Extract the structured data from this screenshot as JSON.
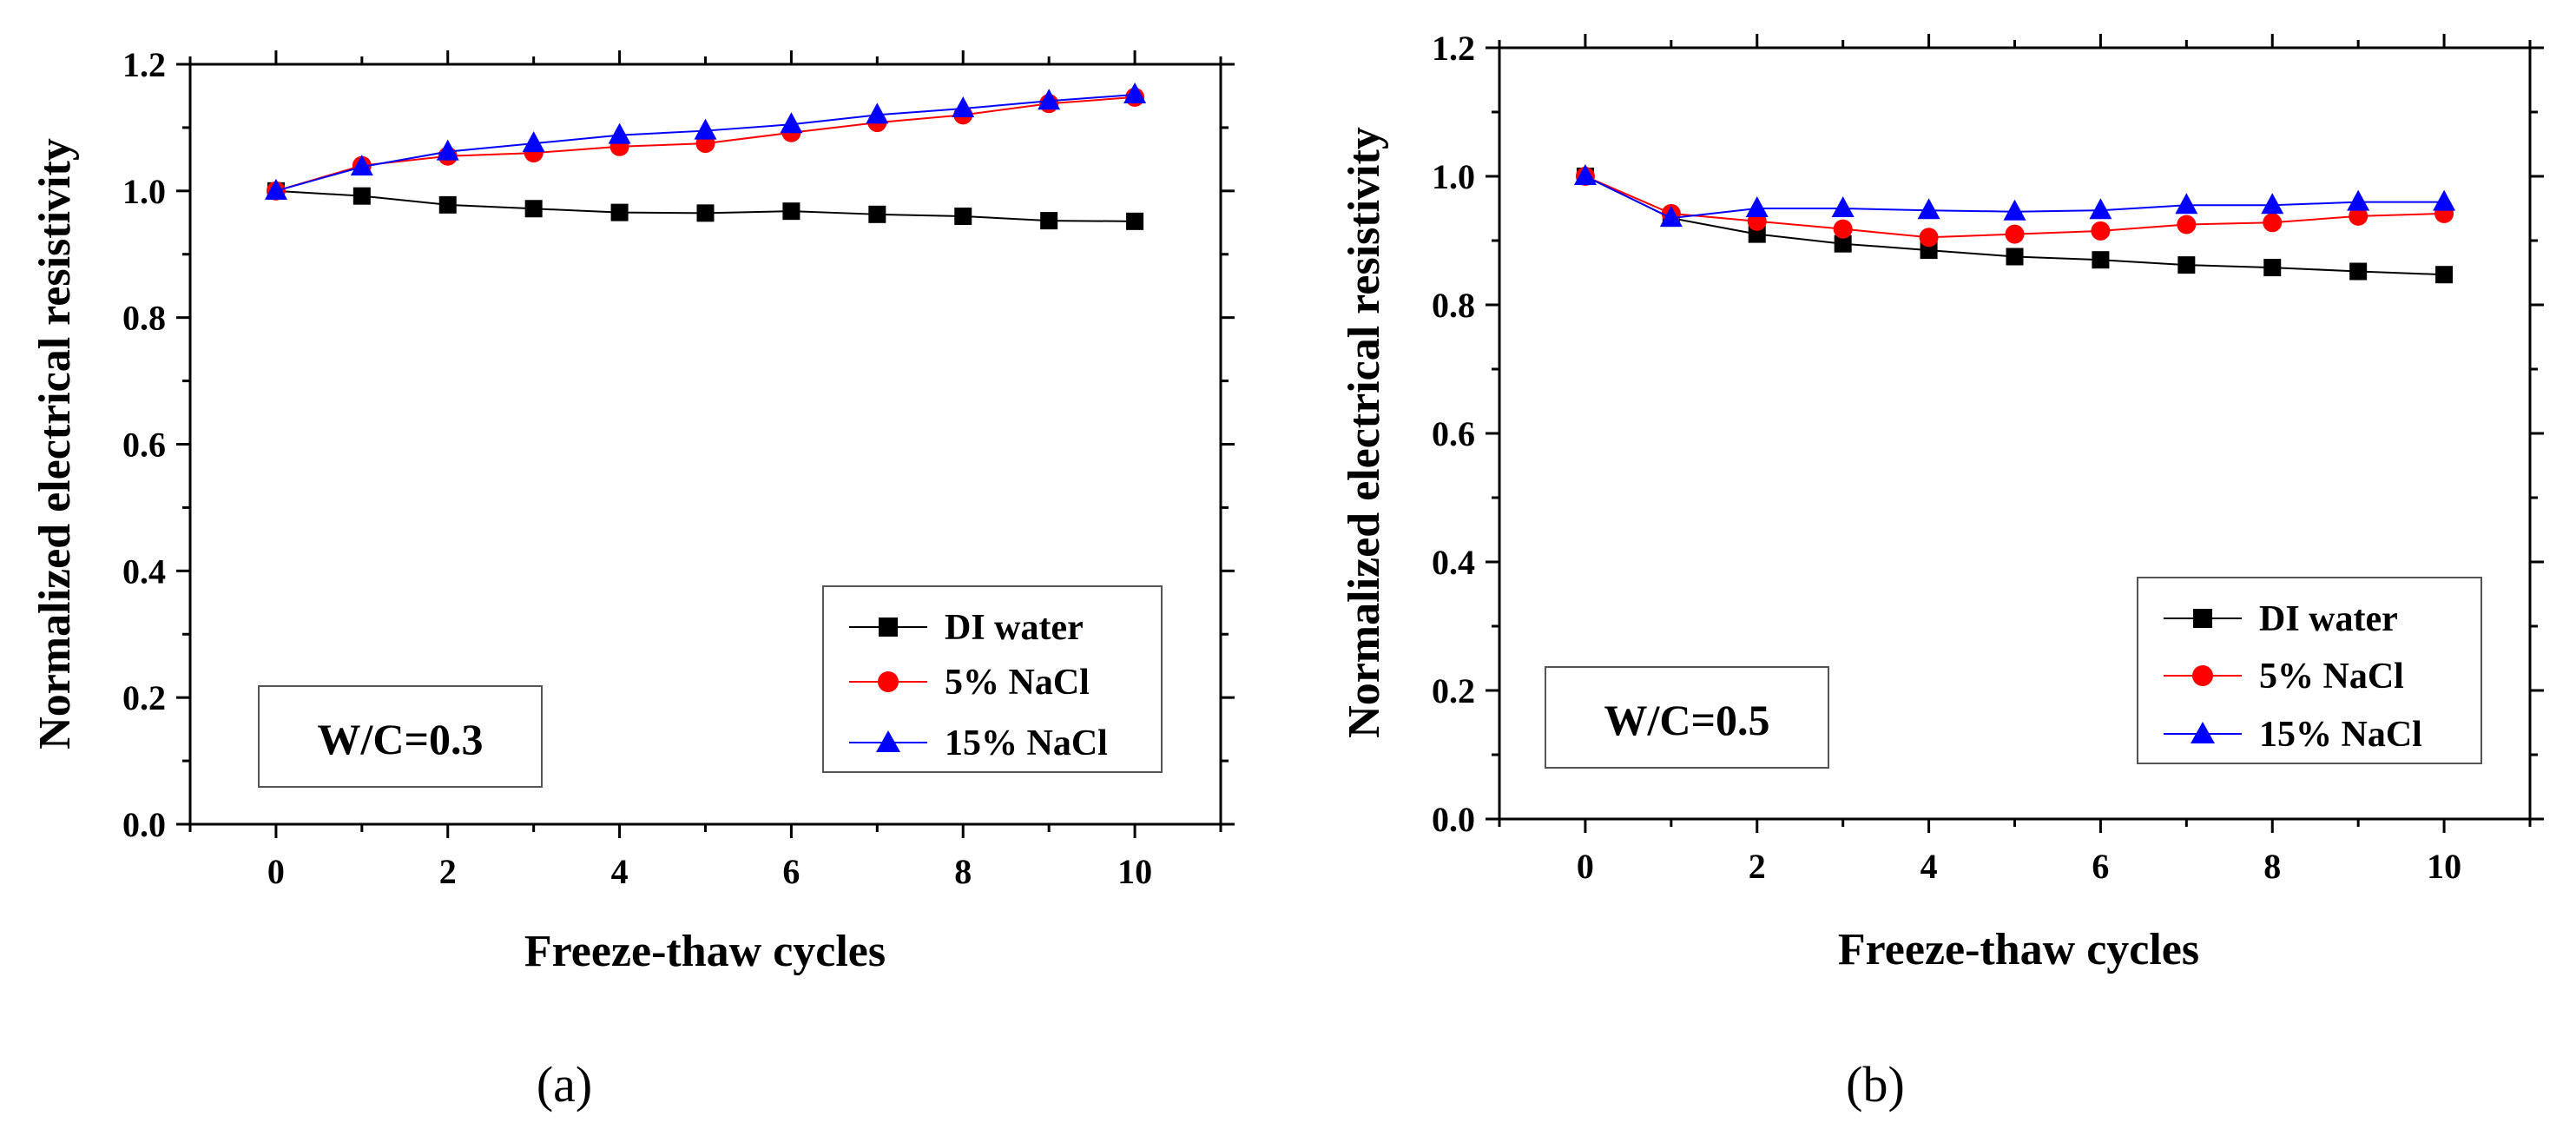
{
  "chart_data": [
    {
      "type": "line",
      "panel_label": "(a)",
      "xlabel": "Freeze-thaw cycles",
      "ylabel": "Normalized electrical resistivity",
      "xlim": [
        -1,
        11
      ],
      "ylim": [
        0.0,
        1.2
      ],
      "xticks": [
        0,
        2,
        4,
        6,
        8,
        10
      ],
      "xtick_labels": [
        "0",
        "2",
        "4",
        "6",
        "8",
        "10"
      ],
      "yticks": [
        0.0,
        0.2,
        0.4,
        0.6,
        0.8,
        1.0,
        1.2
      ],
      "ytick_labels": [
        "0.0",
        "0.2",
        "0.4",
        "0.6",
        "0.8",
        "1.0",
        "1.2"
      ],
      "annotation": "W/C=0.3",
      "legend_position": "lower-right",
      "x": [
        0,
        1,
        2,
        3,
        4,
        5,
        6,
        7,
        8,
        9,
        10
      ],
      "series": [
        {
          "name": "DI water",
          "color": "#000000",
          "marker": "square",
          "values": [
            1.0,
            0.992,
            0.978,
            0.972,
            0.966,
            0.965,
            0.968,
            0.963,
            0.96,
            0.953,
            0.952
          ]
        },
        {
          "name": "5% NaCl",
          "color": "#ff0000",
          "marker": "circle",
          "values": [
            1.0,
            1.04,
            1.055,
            1.06,
            1.07,
            1.075,
            1.092,
            1.108,
            1.12,
            1.138,
            1.148
          ]
        },
        {
          "name": "15% NaCl",
          "color": "#0000ff",
          "marker": "triangle",
          "values": [
            1.0,
            1.038,
            1.062,
            1.075,
            1.088,
            1.095,
            1.105,
            1.12,
            1.13,
            1.142,
            1.152
          ]
        }
      ]
    },
    {
      "type": "line",
      "panel_label": "(b)",
      "xlabel": "Freeze-thaw cycles",
      "ylabel": "Normalized electrical resistivity",
      "xlim": [
        -1,
        11
      ],
      "ylim": [
        0.0,
        1.2
      ],
      "xticks": [
        0,
        2,
        4,
        6,
        8,
        10
      ],
      "xtick_labels": [
        "0",
        "2",
        "4",
        "6",
        "8",
        "10"
      ],
      "yticks": [
        0.0,
        0.2,
        0.4,
        0.6,
        0.8,
        1.0,
        1.2
      ],
      "ytick_labels": [
        "0.0",
        "0.2",
        "0.4",
        "0.6",
        "0.8",
        "1.0",
        "1.2"
      ],
      "annotation": "W/C=0.5",
      "legend_position": "lower-right",
      "x": [
        0,
        1,
        2,
        3,
        4,
        5,
        6,
        7,
        8,
        9,
        10
      ],
      "series": [
        {
          "name": "DI water",
          "color": "#000000",
          "marker": "square",
          "values": [
            1.0,
            0.935,
            0.91,
            0.895,
            0.885,
            0.875,
            0.87,
            0.862,
            0.858,
            0.852,
            0.847
          ]
        },
        {
          "name": "5% NaCl",
          "color": "#ff0000",
          "marker": "circle",
          "values": [
            1.0,
            0.942,
            0.93,
            0.918,
            0.905,
            0.91,
            0.915,
            0.925,
            0.928,
            0.938,
            0.942
          ]
        },
        {
          "name": "15% NaCl",
          "color": "#0000ff",
          "marker": "triangle",
          "values": [
            1.0,
            0.935,
            0.95,
            0.95,
            0.947,
            0.945,
            0.947,
            0.955,
            0.955,
            0.96,
            0.96
          ]
        }
      ]
    }
  ]
}
